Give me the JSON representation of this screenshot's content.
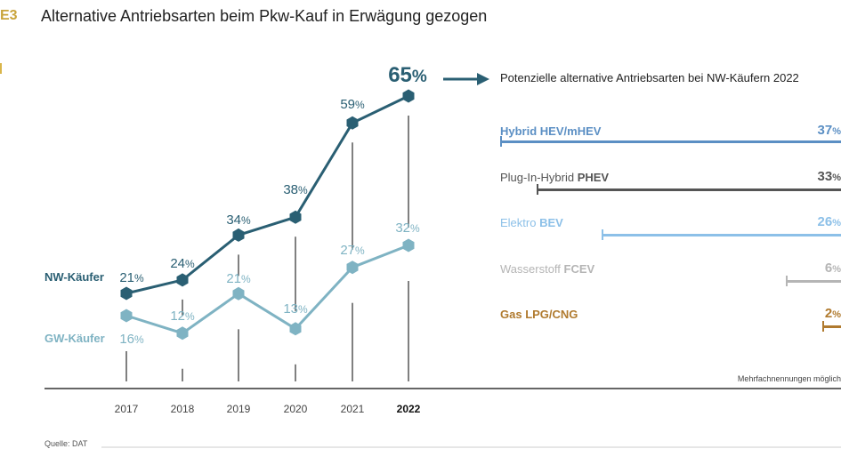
{
  "header": {
    "figure_id": "E3",
    "title": "Alternative Antriebsarten beim Pkw-Kauf in Erwägung gezogen"
  },
  "colors": {
    "nw": "#2a5f73",
    "gw": "#7fb3c3",
    "accent": "#c9a43b",
    "axis": "#555555"
  },
  "chart_data": [
    {
      "type": "line",
      "title": "Alternative Antriebsarten beim Pkw-Kauf in Erwägung gezogen",
      "categories": [
        "2017",
        "2018",
        "2019",
        "2020",
        "2021",
        "2022"
      ],
      "highlight_category": "2022",
      "series": [
        {
          "name": "NW-Käufer",
          "values": [
            21,
            24,
            34,
            38,
            59,
            65
          ],
          "color": "#2a5f73"
        },
        {
          "name": "GW-Käufer",
          "values": [
            16,
            12,
            21,
            13,
            27,
            32
          ],
          "color": "#7fb3c3"
        }
      ],
      "value_suffix": "%",
      "ylim": [
        0,
        70
      ],
      "grid": false,
      "legend": "inline-left"
    },
    {
      "type": "bar",
      "orientation": "horizontal",
      "title": "Potenzielle alternative Antriebsarten bei NW-Käufern 2022",
      "categories": [
        "Hybrid HEV/mHEV",
        "Plug-In-Hybrid PHEV",
        "Elektro BEV",
        "Wasserstoff FCEV",
        "Gas LPG/CNG"
      ],
      "values": [
        37,
        33,
        26,
        6,
        2
      ],
      "value_suffix": "%",
      "xlim": [
        0,
        37
      ],
      "note": "Mehrfachnennungen möglich"
    }
  ],
  "line_labels": {
    "nw_legend": "NW-Käufer",
    "gw_legend": "GW-Käufer"
  },
  "bars": [
    {
      "prefix": "Hybrid ",
      "code": "HEV/mHEV",
      "value": "37",
      "color": "#5b8fc4"
    },
    {
      "prefix": "Plug-In-Hybrid ",
      "code": "PHEV",
      "value": "33",
      "color": "#555555"
    },
    {
      "prefix": "Elektro ",
      "code": "BEV",
      "value": "26",
      "color": "#8cc0e8"
    },
    {
      "prefix": "Wasserstoff ",
      "code": "FCEV",
      "value": "6",
      "color": "#b5b5b5"
    },
    {
      "prefix": "Gas ",
      "code": "LPG/CNG",
      "value": "2",
      "color": "#b07a2e"
    }
  ],
  "subtitle": "Potenzielle alternative Antriebsarten bei NW-Käufern 2022",
  "note": "Mehrfachnennungen möglich",
  "source": "Quelle: DAT"
}
